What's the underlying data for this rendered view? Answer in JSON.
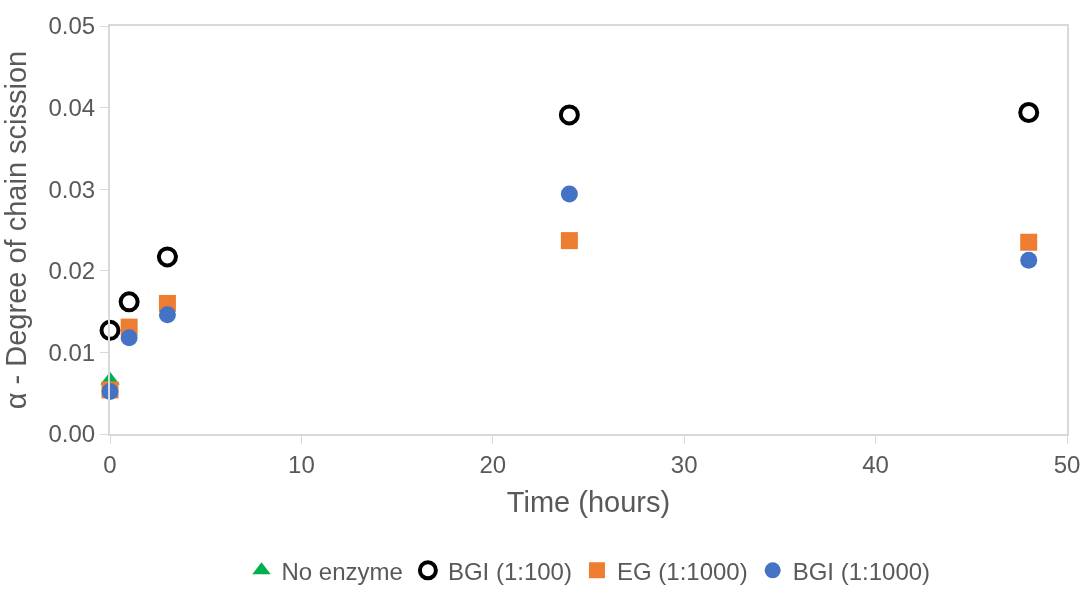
{
  "chart_data": {
    "type": "scatter",
    "xlabel": "Time (hours)",
    "ylabel": "α - Degree of chain scission",
    "xlim": [
      0,
      50
    ],
    "xticks": [
      0,
      10,
      20,
      30,
      40,
      50
    ],
    "ylim": [
      0,
      0.05
    ],
    "yticks": [
      "0.00",
      0.01,
      0.02,
      0.03,
      0.04,
      0.05
    ],
    "legend": "bottom",
    "series": [
      {
        "name": "No enzyme",
        "color": "#00b050",
        "marker": "triangle",
        "x": [
          0
        ],
        "values": [
          0.0066
        ]
      },
      {
        "name": "BGI (1:100)",
        "color": "#000000",
        "marker": "circle-open",
        "x": [
          0,
          1,
          3,
          24,
          48
        ],
        "values": [
          0.0127,
          0.0162,
          0.0217,
          0.0391,
          0.0394
        ]
      },
      {
        "name": "EG (1:1000)",
        "color": "#ed7d31",
        "marker": "square",
        "x": [
          0,
          1,
          3,
          24,
          48
        ],
        "values": [
          0.0054,
          0.0131,
          0.016,
          0.0237,
          0.0235
        ]
      },
      {
        "name": "BGI (1:1000)",
        "color": "#4472c4",
        "marker": "circle",
        "x": [
          0,
          1,
          3,
          24,
          48
        ],
        "values": [
          0.0052,
          0.0118,
          0.0146,
          0.0294,
          0.0213
        ]
      }
    ]
  }
}
